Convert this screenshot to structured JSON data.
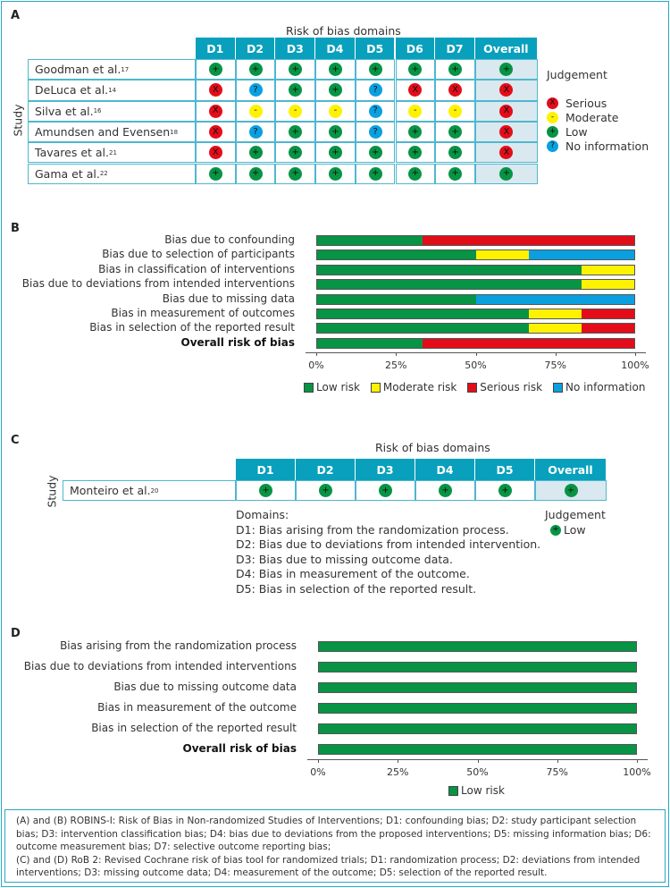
{
  "colors": {
    "header": "#08a0bd",
    "overall_bg": "#d9e9ef",
    "low": "#079444",
    "moderate": "#fff200",
    "serious": "#e30d1a",
    "no_information": "#0aa0e0"
  },
  "panel_a": {
    "label": "A",
    "title": "Risk of bias domains",
    "y_label": "Study",
    "domains": [
      "D1",
      "D2",
      "D3",
      "D4",
      "D5",
      "D6",
      "D7",
      "Overall"
    ],
    "studies": [
      {
        "name": "Goodman et al.",
        "ref": "17",
        "judgements": [
          "low",
          "low",
          "low",
          "low",
          "low",
          "low",
          "low",
          "low"
        ]
      },
      {
        "name": "DeLuca et al.",
        "ref": "14",
        "judgements": [
          "serious",
          "no_information",
          "low",
          "low",
          "no_information",
          "serious",
          "serious",
          "serious"
        ]
      },
      {
        "name": "Silva et al.",
        "ref": "16",
        "judgements": [
          "serious",
          "moderate",
          "moderate",
          "moderate",
          "no_information",
          "moderate",
          "moderate",
          "serious"
        ]
      },
      {
        "name": "Amundsen and Evensen",
        "ref": "18",
        "judgements": [
          "serious",
          "no_information",
          "low",
          "low",
          "no_information",
          "low",
          "low",
          "serious"
        ]
      },
      {
        "name": "Tavares et al.",
        "ref": "21",
        "judgements": [
          "serious",
          "low",
          "low",
          "low",
          "low",
          "low",
          "low",
          "serious"
        ]
      },
      {
        "name": "Gama et al.",
        "ref": "22",
        "judgements": [
          "low",
          "low",
          "low",
          "low",
          "low",
          "low",
          "low",
          "low"
        ]
      }
    ],
    "legend_title": "Judgement",
    "legend": [
      {
        "key": "serious",
        "label": "Serious",
        "symbol": "X"
      },
      {
        "key": "moderate",
        "label": "Moderate",
        "symbol": "-"
      },
      {
        "key": "low",
        "label": "Low",
        "symbol": "+"
      },
      {
        "key": "no_information",
        "label": "No information",
        "symbol": "?"
      }
    ]
  },
  "panel_c": {
    "label": "C",
    "title": "Risk of bias domains",
    "y_label": "Study",
    "domains": [
      "D1",
      "D2",
      "D3",
      "D4",
      "D5",
      "Overall"
    ],
    "studies": [
      {
        "name": "Monteiro et al.",
        "ref": "20",
        "judgements": [
          "low",
          "low",
          "low",
          "low",
          "low",
          "low"
        ]
      }
    ],
    "domains_title": "Domains:",
    "domain_descriptions": [
      "D1: Bias arising from the randomization process.",
      "D2: Bias due to deviations from intended intervention.",
      "D3: Bias due to missing outcome data.",
      "D4: Bias in measurement of the outcome.",
      "D5: Bias in selection of the reported result."
    ],
    "legend_title": "Judgement",
    "legend": [
      {
        "key": "low",
        "label": "Low",
        "symbol": "+"
      }
    ]
  },
  "chart_data": [
    {
      "panel": "B",
      "type": "bar",
      "stacked": true,
      "orientation": "horizontal",
      "categories": [
        "Bias due to confounding",
        "Bias due to selection of participants",
        "Bias in classification of interventions",
        "Bias due to deviations from intended interventions",
        "Bias due to missing data",
        "Bias in measurement of outcomes",
        "Bias in selection of the reported result",
        "Overall risk of bias"
      ],
      "bold_categories": [
        "Overall risk of bias"
      ],
      "series": [
        {
          "name": "Low risk",
          "key": "low",
          "values": [
            33.3,
            50,
            83.3,
            83.3,
            50,
            66.7,
            66.7,
            33.3
          ]
        },
        {
          "name": "Moderate risk",
          "key": "moderate",
          "values": [
            0,
            16.7,
            16.7,
            16.7,
            0,
            16.7,
            16.7,
            0
          ]
        },
        {
          "name": "Serious risk",
          "key": "serious",
          "values": [
            66.7,
            0,
            0,
            0,
            0,
            16.7,
            16.7,
            66.7
          ]
        },
        {
          "name": "No information",
          "key": "no_information",
          "values": [
            0,
            33.3,
            0,
            0,
            50,
            0,
            0,
            0
          ]
        }
      ],
      "xlim": [
        0,
        100
      ],
      "xticks": [
        "0%",
        "25%",
        "50%",
        "75%",
        "100%"
      ],
      "legend_placement": "bottom",
      "grid": false
    },
    {
      "panel": "D",
      "type": "bar",
      "stacked": true,
      "orientation": "horizontal",
      "categories": [
        "Bias arising from the randomization process",
        "Bias due to deviations from intended interventions",
        "Bias due to missing outcome data",
        "Bias in measurement of the outcome",
        "Bias in selection of the reported result",
        "Overall risk of bias"
      ],
      "bold_categories": [
        "Overall risk of bias"
      ],
      "series": [
        {
          "name": "Low risk",
          "key": "low",
          "values": [
            100,
            100,
            100,
            100,
            100,
            100
          ]
        }
      ],
      "xlim": [
        0,
        100
      ],
      "xticks": [
        "0%",
        "25%",
        "50%",
        "75%",
        "100%"
      ],
      "legend_placement": "bottom",
      "grid": false
    }
  ],
  "footnote": [
    "(A) and (B) ROBINS-I: Risk of Bias in Non-randomized Studies of Interventions; D1: confounding bias; D2: study participant selection bias; D3: intervention classification bias; D4: bias due to deviations from the proposed interventions; D5: missing information bias; D6: outcome measurement bias; D7: selective outcome reporting bias;",
    "(C) and (D) RoB 2: Revised Cochrane risk of bias tool for randomized trials; D1: randomization process; D2: deviations from intended interventions; D3: missing outcome data; D4: measurement of the outcome; D5: selection of the reported result."
  ]
}
